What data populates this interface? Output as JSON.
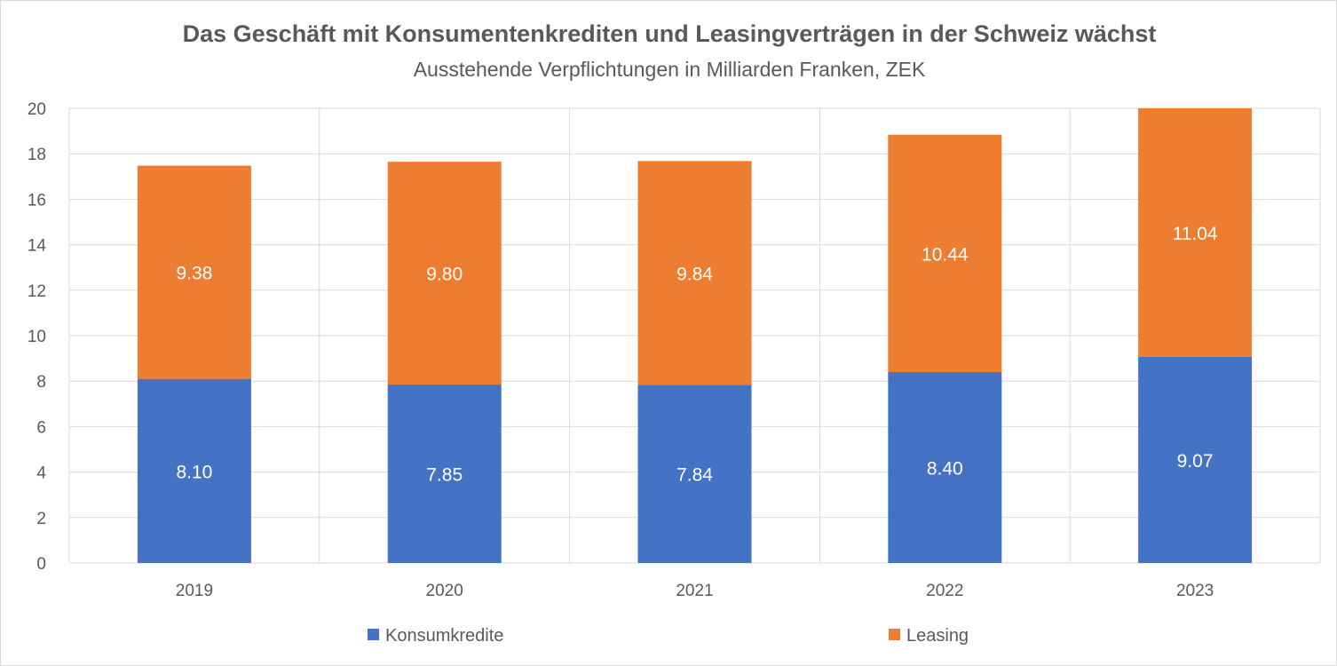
{
  "chart_data": {
    "type": "bar",
    "stacked": true,
    "title": "Das Geschäft mit Konsumentenkrediten und Leasingverträgen in der Schweiz wächst",
    "subtitle": "Ausstehende Verpflichtungen in Milliarden Franken, ZEK",
    "categories": [
      "2019",
      "2020",
      "2021",
      "2022",
      "2023"
    ],
    "series": [
      {
        "name": "Konsumkredite",
        "color": "#4472c4",
        "values": [
          8.1,
          7.85,
          7.84,
          8.4,
          9.07
        ],
        "labels": [
          "8.10",
          "7.85",
          "7.84",
          "8.40",
          "9.07"
        ]
      },
      {
        "name": "Leasing",
        "color": "#ed7d31",
        "values": [
          9.38,
          9.8,
          9.84,
          10.44,
          11.04
        ],
        "labels": [
          "9.38",
          "9.80",
          "9.84",
          "10.44",
          "11.04"
        ]
      }
    ],
    "ylim": [
      0,
      20
    ],
    "yticks": [
      "0",
      "2",
      "4",
      "6",
      "8",
      "10",
      "12",
      "14",
      "16",
      "18",
      "20"
    ],
    "grid": true,
    "legend_position": "bottom"
  }
}
